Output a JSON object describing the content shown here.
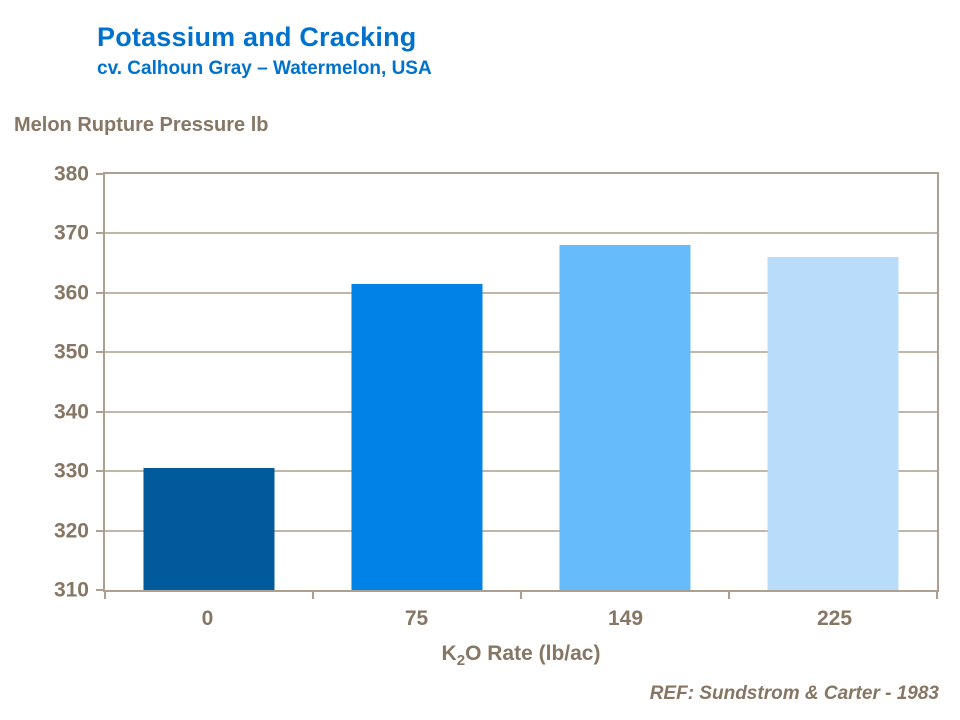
{
  "page": {
    "title": "Potassium and Cracking",
    "subtitle": "cv. Calhoun Gray – Watermelon, USA",
    "reference": "REF: Sundstrom & Carter - 1983"
  },
  "chart_data": {
    "type": "bar",
    "title": "Melon Rupture Pressure lb",
    "ylabel": "Melon Rupture Pressure lb",
    "xlabel": "K2O Rate (lb/ac)",
    "xlabel_parts": {
      "base": "K",
      "sub": "2",
      "rest": "O Rate (lb/ac)"
    },
    "categories": [
      "0",
      "75",
      "149",
      "225"
    ],
    "values": [
      330.5,
      361.5,
      368,
      366
    ],
    "ylim": [
      310,
      380
    ],
    "yticks": [
      380,
      370,
      360,
      350,
      340,
      330,
      320,
      310
    ],
    "grid": true,
    "legend": false,
    "bar_colors": [
      "#005A9B",
      "#0082E6",
      "#66BBFA",
      "#BADCFB"
    ]
  },
  "theme": {
    "title_blue": "#0072CE",
    "axis_text": "#867663",
    "grid_line": "#C2B6A9",
    "axis_line": "#ACA091",
    "background": "#FFFFFF"
  }
}
